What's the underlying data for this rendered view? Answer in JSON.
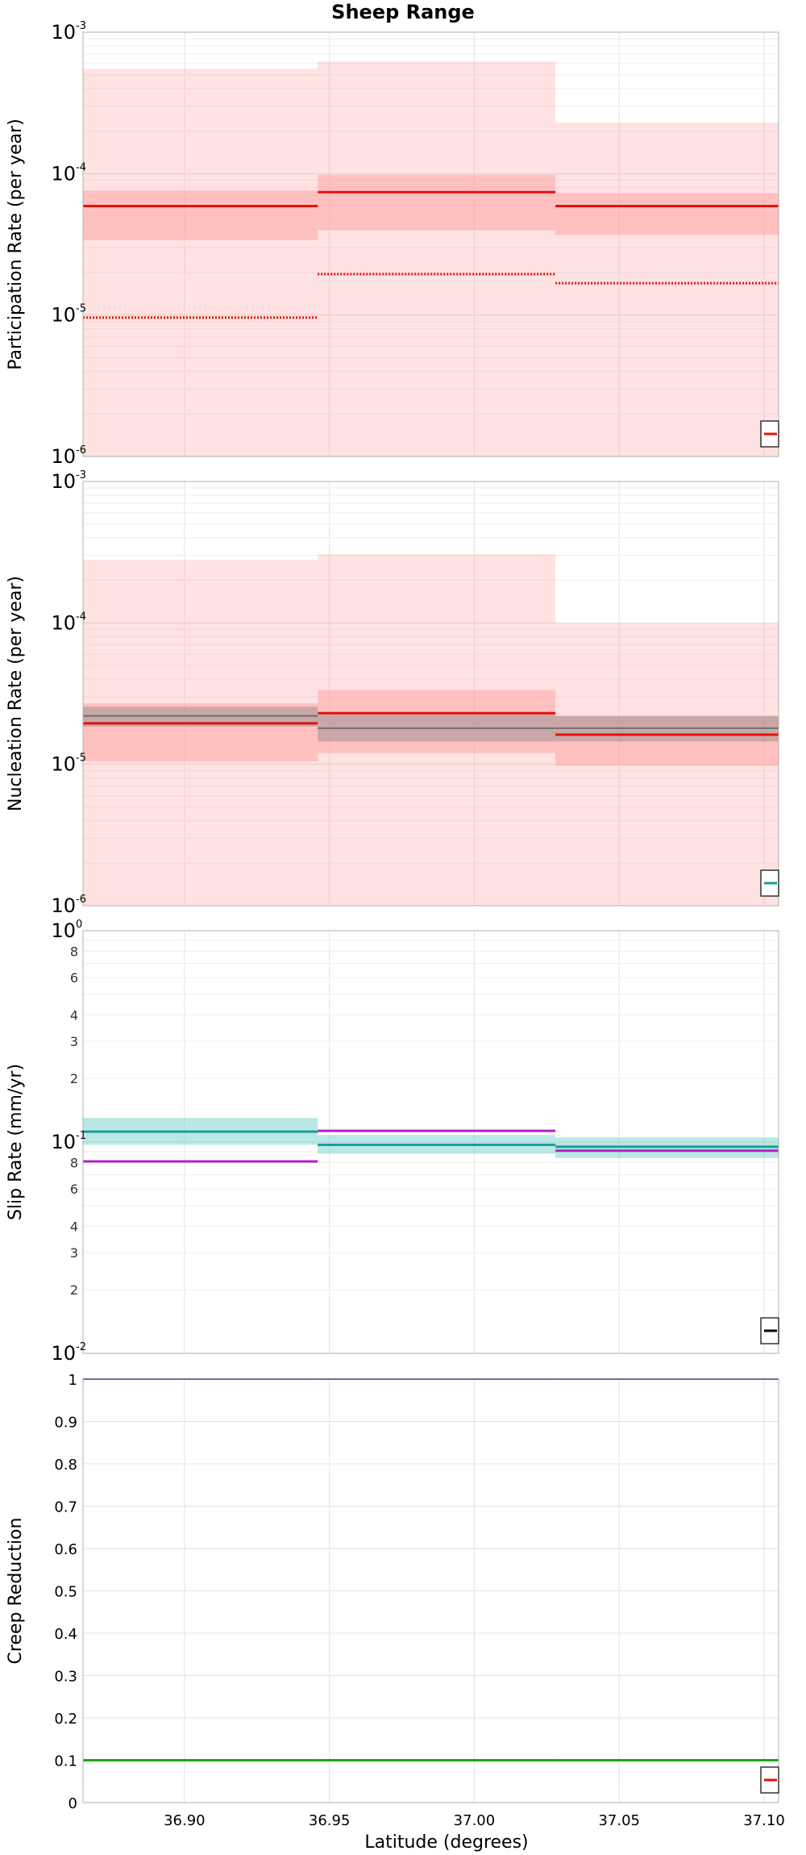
{
  "figure": {
    "title": "Sheep Range",
    "xlabel": "Latitude (degrees)"
  },
  "chart_data": [
    {
      "id": "participation",
      "type": "line",
      "ylabel": "Participation Rate (per year)",
      "yscale": "log",
      "ylim": [
        1e-06,
        0.001
      ],
      "ytick_labels": [
        "10",
        "10",
        "10",
        "10"
      ],
      "ytick_exponents": [
        "-6",
        "-5",
        "-4",
        "-3"
      ],
      "xlim": [
        36.865,
        37.105
      ],
      "grid": true,
      "legend_position": "bottom-right",
      "segment_edges": [
        36.865,
        36.946,
        37.028,
        37.105
      ],
      "bands": [
        {
          "color": "#ff9e9e",
          "opacity": 0.3,
          "lower": [
            1e-06,
            1e-06,
            1e-06
          ],
          "upper": [
            0.00055,
            0.00062,
            0.00023
          ]
        },
        {
          "color": "#ff9e9e",
          "opacity": 0.5,
          "lower": [
            3.4e-05,
            4e-05,
            3.7e-05
          ],
          "upper": [
            7.6e-05,
            9.8e-05,
            7.3e-05
          ]
        }
      ],
      "series": [
        {
          "values": [
            5.9e-05,
            7.4e-05,
            5.9e-05
          ],
          "color": "#e3120b",
          "style": "solid",
          "width": 3
        },
        {
          "values": [
            9.6e-06,
            1.95e-05,
            1.68e-05
          ],
          "color": "#e3120b",
          "style": "dotted",
          "width": 3
        }
      ]
    },
    {
      "id": "nucleation",
      "type": "line",
      "ylabel": "Nucleation Rate (per year)",
      "yscale": "log",
      "ylim": [
        1e-06,
        0.001
      ],
      "ytick_labels": [
        "10",
        "10",
        "10",
        "10"
      ],
      "ytick_exponents": [
        "-6",
        "-5",
        "-4",
        "-3"
      ],
      "xlim": [
        36.865,
        37.105
      ],
      "grid": true,
      "legend_position": "bottom-right",
      "segment_edges": [
        36.865,
        36.946,
        37.028,
        37.105
      ],
      "bands": [
        {
          "color": "#ff9e9e",
          "opacity": 0.3,
          "lower": [
            1e-06,
            1e-06,
            1e-06
          ],
          "upper": [
            0.00028,
            0.000305,
            9.9e-05
          ]
        },
        {
          "color": "#ff9e9e",
          "opacity": 0.5,
          "lower": [
            1.05e-05,
            1.2e-05,
            9.8e-06
          ],
          "upper": [
            2.7e-05,
            3.35e-05,
            2.2e-05
          ]
        },
        {
          "color": "#8a8a8a",
          "opacity": 0.45,
          "lower": [
            1.85e-05,
            1.45e-05,
            1.45e-05
          ],
          "upper": [
            2.55e-05,
            2.3e-05,
            2.2e-05
          ]
        }
      ],
      "series": [
        {
          "values": [
            2.2e-05,
            1.8e-05,
            1.8e-05
          ],
          "color": "#6e6e6e",
          "style": "solid",
          "width": 2
        },
        {
          "values": [
            1.95e-05,
            2.3e-05,
            1.62e-05
          ],
          "color": "#e3120b",
          "style": "solid",
          "width": 3
        }
      ]
    },
    {
      "id": "slip",
      "type": "line",
      "ylabel": "Slip Rate (mm/yr)",
      "yscale": "log",
      "ylim": [
        0.01,
        1
      ],
      "ytick_labels": [
        "10",
        "10",
        "10"
      ],
      "ytick_exponents": [
        "-2",
        "-1",
        "0"
      ],
      "minor_ticks": [
        {
          "value": 0.02,
          "label": "2"
        },
        {
          "value": 0.03,
          "label": "3"
        },
        {
          "value": 0.04,
          "label": "4"
        },
        {
          "value": 0.06,
          "label": "6"
        },
        {
          "value": 0.08,
          "label": "8"
        },
        {
          "value": 0.2,
          "label": "2"
        },
        {
          "value": 0.3,
          "label": "3"
        },
        {
          "value": 0.4,
          "label": "4"
        },
        {
          "value": 0.6,
          "label": "6"
        },
        {
          "value": 0.8,
          "label": "8"
        }
      ],
      "xlim": [
        36.865,
        37.105
      ],
      "grid": true,
      "legend_position": "bottom-right",
      "segment_edges": [
        36.865,
        36.946,
        37.028,
        37.105
      ],
      "bands": [
        {
          "color": "#7fd6cf",
          "opacity": 0.55,
          "lower": [
            0.097,
            0.088,
            0.084
          ],
          "upper": [
            0.13,
            0.108,
            0.105
          ]
        }
      ],
      "series": [
        {
          "values": [
            0.112,
            0.097,
            0.095
          ],
          "color": "#1a9e96",
          "style": "solid",
          "width": 3
        },
        {
          "values": [
            0.081,
            0.113,
            0.091
          ],
          "color": "#b51fc9",
          "style": "solid",
          "width": 3
        }
      ]
    },
    {
      "id": "creep",
      "type": "line",
      "ylabel": "Creep Reduction",
      "yscale": "linear",
      "ylim": [
        0,
        1
      ],
      "yticks": [
        0,
        0.1,
        0.2,
        0.3,
        0.4,
        0.5,
        0.6,
        0.7,
        0.8,
        0.9,
        1
      ],
      "ytick_labels": [
        "0",
        "0.1",
        "0.2",
        "0.3",
        "0.4",
        "0.5",
        "0.6",
        "0.7",
        "0.8",
        "0.9",
        "1"
      ],
      "xlim": [
        36.865,
        37.105
      ],
      "xticks": [
        36.9,
        36.95,
        37.0,
        37.05,
        37.1
      ],
      "xtick_labels": [
        "36.90",
        "36.95",
        "37.00",
        "37.05",
        "37.10"
      ],
      "grid": true,
      "legend_position": "bottom-right",
      "segment_edges": [
        36.865,
        36.946,
        37.028,
        37.105
      ],
      "bands": [],
      "series": [
        {
          "values": [
            1,
            1,
            1
          ],
          "color": "#2b2b8f",
          "style": "solid",
          "width": 2
        },
        {
          "values": [
            0.1,
            0.1,
            0.1
          ],
          "color": "#1aa61a",
          "style": "solid",
          "width": 3
        }
      ]
    }
  ],
  "legends": [
    {
      "swatch_color": "#e3120b"
    },
    {
      "swatch_color": "#1a9e96"
    },
    {
      "swatch_color": "#000000"
    },
    {
      "swatch_color": "#e3120b"
    }
  ]
}
